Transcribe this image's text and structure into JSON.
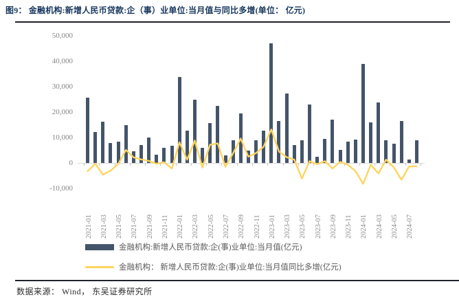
{
  "title": "图9：  金融机构:新增人民币贷款:企（事）业单位:当月值与同比多增(单位：  亿元)",
  "source_note": "数据来源： Wind， 东吴证券研究所",
  "legend": {
    "bar_label": "金融机构:新增人民币贷款:企(事)业单位:当月值(亿元)",
    "line_label": "金融机构： 新增人民币贷款:企(事)业单位:当月值同比多增(亿元)"
  },
  "colors": {
    "bar": "#44546A",
    "line": "#FFD45E",
    "title": "#17375E",
    "axis_text": "#8C8C8C"
  },
  "chart_data": {
    "type": "bar",
    "subtype": "bar+line combo",
    "categories": [
      "2021-01",
      "2021-02",
      "2021-03",
      "2021-04",
      "2021-05",
      "2021-06",
      "2021-07",
      "2021-08",
      "2021-09",
      "2021-10",
      "2021-11",
      "2021-12",
      "2022-01",
      "2022-02",
      "2022-03",
      "2022-04",
      "2022-05",
      "2022-06",
      "2022-07",
      "2022-08",
      "2022-09",
      "2022-10",
      "2022-11",
      "2022-12",
      "2023-01",
      "2023-02",
      "2023-03",
      "2023-04",
      "2023-05",
      "2023-06",
      "2023-07",
      "2023-08",
      "2023-09",
      "2023-10",
      "2023-11",
      "2023-12",
      "2024-01",
      "2024-02",
      "2024-03",
      "2024-04",
      "2024-05",
      "2024-06",
      "2024-07",
      "2024-08"
    ],
    "series": [
      {
        "name": "金融机构:新增人民币贷款:企(事)业单位:当月值(亿元)",
        "type": "bar",
        "color": "#44546A",
        "values": [
          25800,
          12200,
          16200,
          7800,
          8400,
          14900,
          4700,
          7000,
          9900,
          3200,
          5900,
          6700,
          33700,
          12600,
          25000,
          6000,
          15600,
          22300,
          3000,
          8900,
          19400,
          4900,
          8900,
          12800,
          47100,
          16400,
          27200,
          7000,
          8800,
          23000,
          2400,
          9500,
          17100,
          5100,
          8400,
          9200,
          38800,
          16000,
          23700,
          8900,
          7600,
          16500,
          1400,
          8800
        ]
      },
      {
        "name": "金融机构： 新增人民币贷款:企(事)业单位:当月值同比多增(亿元)",
        "type": "line",
        "color": "#FFD45E",
        "values": [
          -3200,
          -300,
          -4600,
          -3000,
          -400,
          5100,
          2200,
          1400,
          800,
          -300,
          300,
          -2200,
          8100,
          1300,
          8800,
          -1800,
          7200,
          7700,
          -1500,
          3800,
          9600,
          2500,
          3900,
          6400,
          13200,
          4500,
          2300,
          1300,
          -6100,
          700,
          -500,
          700,
          -2200,
          400,
          -700,
          -3200,
          -8200,
          -700,
          -4100,
          1300,
          -1700,
          -6600,
          -1400,
          -1300
        ]
      }
    ],
    "title": "金融机构:新增人民币贷款:企（事）业单位:当月值与同比多增",
    "xlabel": "",
    "ylabel": "",
    "unit": "亿元",
    "ylim": [
      -10000,
      50000
    ],
    "ytick_step": 10000,
    "xtick_every_n": 2,
    "grid": false,
    "legend_position": "bottom-left"
  }
}
